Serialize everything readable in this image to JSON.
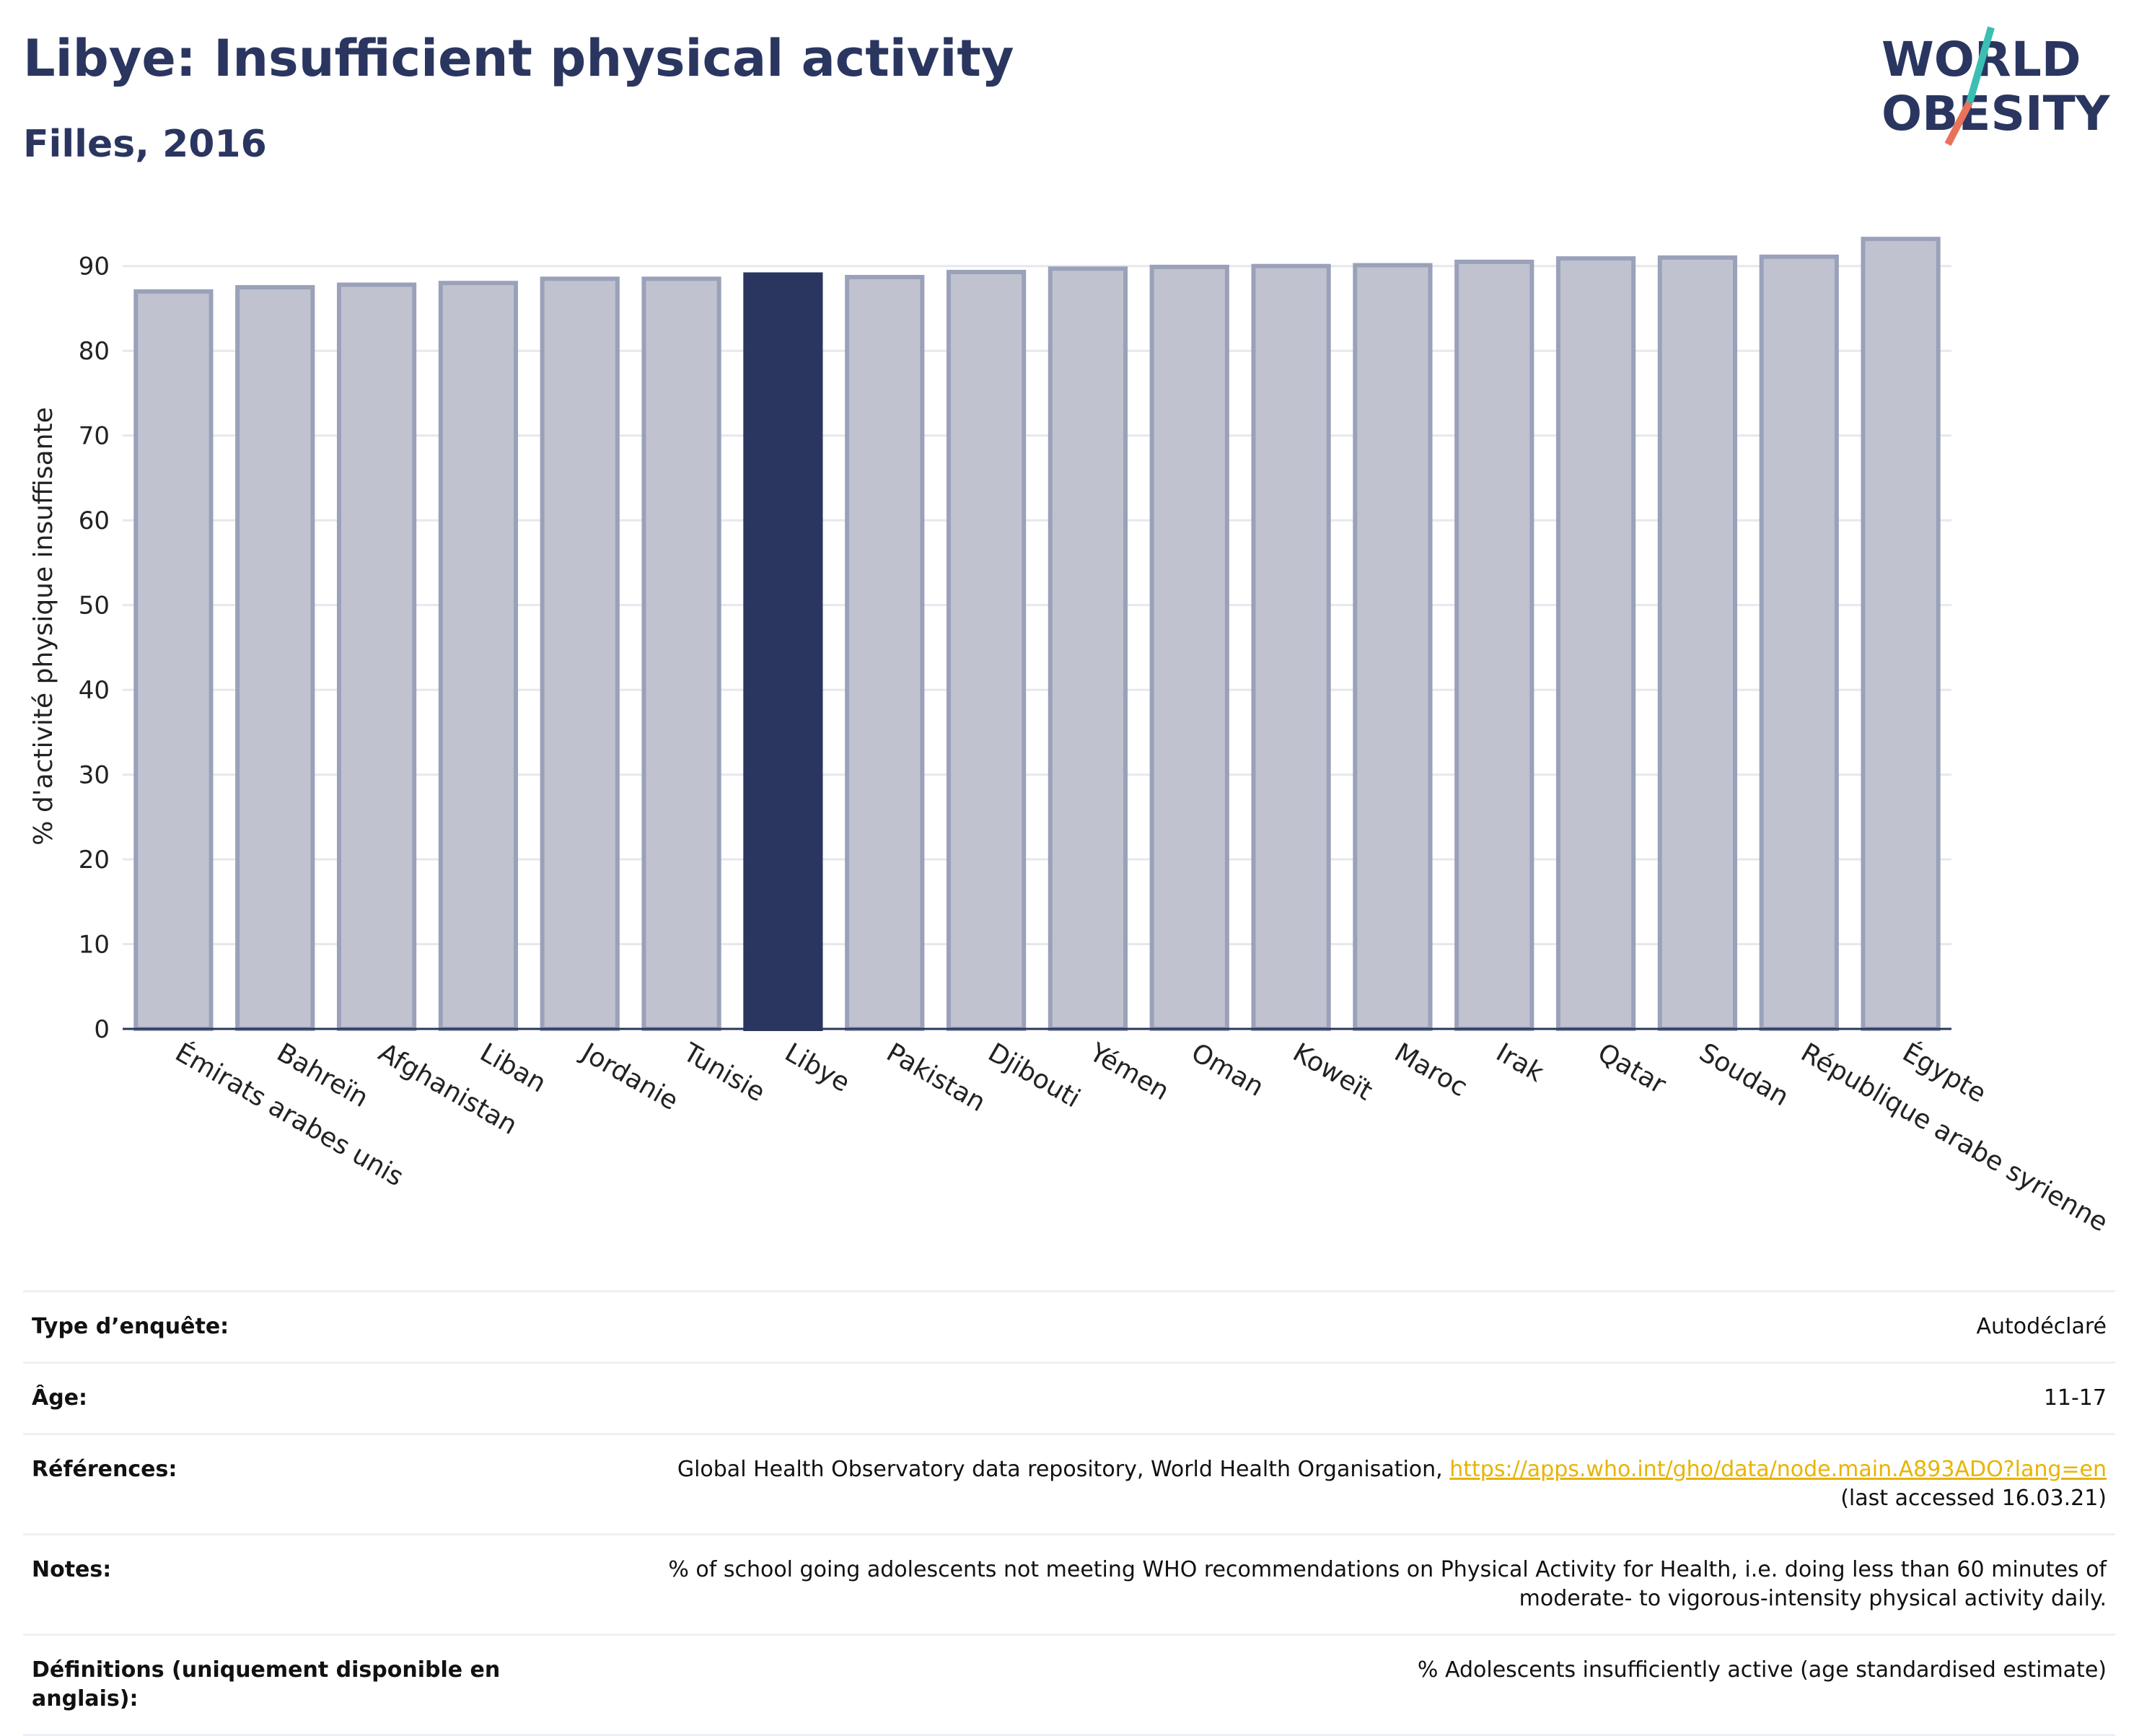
{
  "header": {
    "title": "Libye: Insufficient physical activity",
    "subtitle": "Filles, 2016"
  },
  "logo": {
    "line1": "WORLD",
    "line2": "OBESITY"
  },
  "chart_data": {
    "type": "bar",
    "ylabel": "% d'activité physique insuffisante",
    "ylim": [
      0,
      95
    ],
    "yticks": [
      0,
      10,
      20,
      30,
      40,
      50,
      60,
      70,
      80,
      90
    ],
    "grid": true,
    "highlight": "Libye",
    "categories": [
      "Émirats arabes unis",
      "Bahreïn",
      "Afghanistan",
      "Liban",
      "Jordanie",
      "Tunisie",
      "Libye",
      "Pakistan",
      "Djibouti",
      "Yémen",
      "Oman",
      "Koweït",
      "Maroc",
      "Irak",
      "Qatar",
      "Soudan",
      "République arabe syrienne",
      "Égypte"
    ],
    "values": [
      87.0,
      87.5,
      87.8,
      88.0,
      88.5,
      88.5,
      89.0,
      88.7,
      89.3,
      89.7,
      89.9,
      90.0,
      90.1,
      90.5,
      90.9,
      91.0,
      91.1,
      93.2
    ],
    "colors": {
      "bar": "#c0c3cf",
      "bar_edge": "#9aa1b9",
      "highlight": "#2a3660",
      "axis": "#2a3660",
      "grid": "#e6e8ee"
    }
  },
  "info": {
    "survey_label": "Type d’enquête:",
    "survey_value": "Autodéclaré",
    "age_label": "Âge:",
    "age_value": "11-17",
    "refs_label": "Références:",
    "refs_text": "Global Health Observatory data repository, World Health Organisation,",
    "refs_link": "https://apps.who.int/gho/data/node.main.A893ADO?lang=en",
    "refs_access": "(last accessed 16.03.21)",
    "notes_label": "Notes:",
    "notes_value": "% of school going adolescents not meeting WHO recommendations on Physical Activity for Health, i.e. doing less than 60 minutes of moderate- to vigorous-intensity physical activity daily.",
    "defs_label": "Définitions (uniquement disponible en anglais):",
    "defs_value": "% Adolescents insufficiently active (age standardised estimate)"
  }
}
